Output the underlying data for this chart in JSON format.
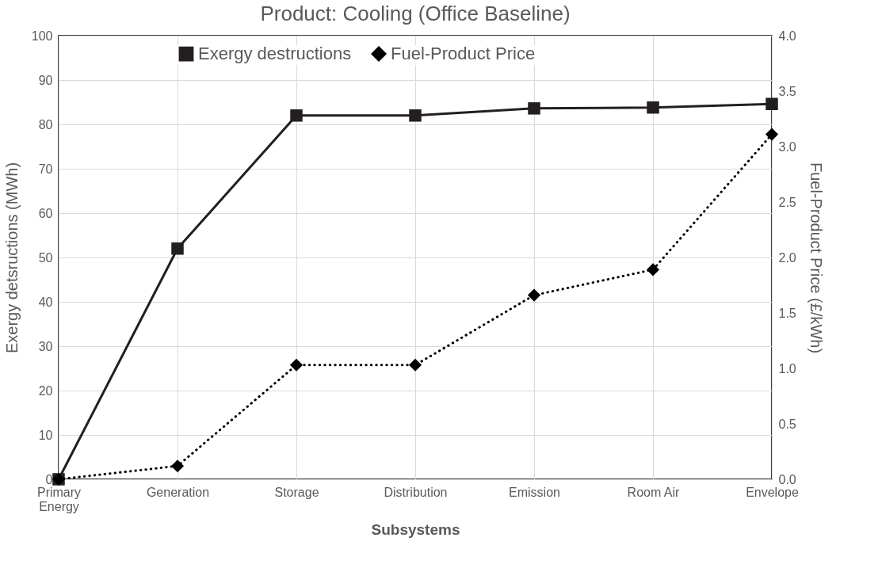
{
  "chart_data": {
    "type": "line",
    "title": "Product: Cooling (Office Baseline)",
    "xlabel": "Subsystems",
    "ylabel": "Exergy detsructions (MWh)",
    "y2label": "Fuel-Product  Price (£/kWh)",
    "categories": [
      "Primary Energy",
      "Generation",
      "Storage",
      "Distribution",
      "Emission",
      "Room Air",
      "Envelope"
    ],
    "series": [
      {
        "name": "Exergy destructions",
        "color": "#231f20",
        "marker": "square",
        "line_style": "solid",
        "values": [
          0,
          52.0,
          82.0,
          82.0,
          83.6,
          83.8,
          84.6
        ]
      },
      {
        "name": "Fuel-Product Price",
        "color": "#000000",
        "marker": "diamond",
        "line_style": "dotted",
        "axis": "y2",
        "values": [
          0,
          0.12,
          1.03,
          1.03,
          1.66,
          1.89,
          3.11
        ]
      }
    ],
    "ylim": [
      0,
      100
    ],
    "yticks": [
      0,
      10,
      20,
      30,
      40,
      50,
      60,
      70,
      80,
      90,
      100
    ],
    "y2lim": [
      0,
      4
    ],
    "y2ticks": [
      {
        "value": 0,
        "label": "0.0"
      },
      {
        "value": 0.5,
        "label": "0.5"
      },
      {
        "value": 1,
        "label": "1.0"
      },
      {
        "value": 1.5,
        "label": "1.5"
      },
      {
        "value": 2,
        "label": "2.0"
      },
      {
        "value": 2.5,
        "label": "2.5"
      },
      {
        "value": 3,
        "label": "3.0"
      },
      {
        "value": 3.5,
        "label": "3.5"
      },
      {
        "value": 4,
        "label": "4.0"
      }
    ],
    "grid": true,
    "legend": "top"
  }
}
